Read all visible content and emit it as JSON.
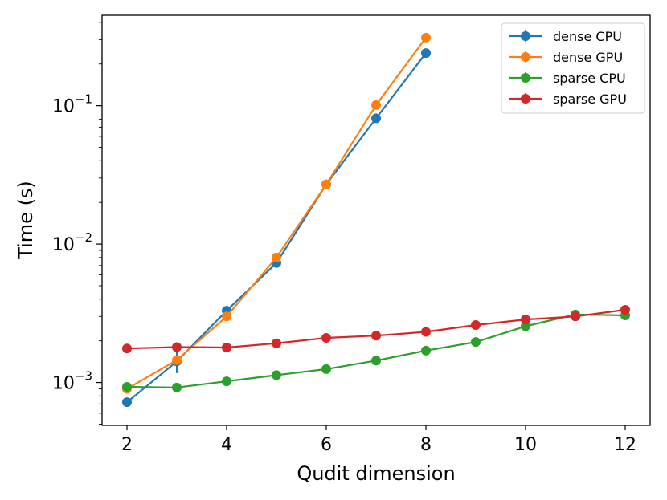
{
  "chart_data": {
    "type": "line",
    "title": "",
    "xlabel": "Qudit dimension",
    "ylabel": "Time (s)",
    "xscale": "linear",
    "yscale": "log",
    "xlim": [
      1.5,
      12.5
    ],
    "ylim": [
      0.00049,
      0.45
    ],
    "xticks": [
      2,
      4,
      6,
      8,
      10,
      12
    ],
    "xtick_labels": [
      "2",
      "4",
      "6",
      "8",
      "10",
      "12"
    ],
    "yticks": [
      0.001,
      0.01,
      0.1
    ],
    "ytick_labels": [
      {
        "base": "10",
        "exp": "−3"
      },
      {
        "base": "10",
        "exp": "−2"
      },
      {
        "base": "10",
        "exp": "−1"
      }
    ],
    "grid": false,
    "legend_position": "top-right",
    "series": [
      {
        "name": "dense CPU",
        "color": "#1f77b4",
        "x": [
          2,
          3,
          4,
          5,
          6,
          7,
          8
        ],
        "y": [
          0.00072,
          0.00142,
          0.0033,
          0.0073,
          0.027,
          0.081,
          0.24
        ],
        "err": [
          0,
          0.00025,
          0,
          0,
          0,
          0,
          0
        ]
      },
      {
        "name": "dense GPU",
        "color": "#ff7f0e",
        "x": [
          2,
          3,
          4,
          5,
          6,
          7,
          8
        ],
        "y": [
          0.0009,
          0.00145,
          0.003,
          0.008,
          0.027,
          0.101,
          0.31
        ],
        "err": [
          0,
          0,
          0,
          0,
          0,
          0,
          0
        ]
      },
      {
        "name": "sparse CPU",
        "color": "#2ca02c",
        "x": [
          2,
          3,
          4,
          5,
          6,
          7,
          8,
          9,
          10,
          11,
          12
        ],
        "y": [
          0.00093,
          0.00092,
          0.00102,
          0.00113,
          0.00125,
          0.00144,
          0.0017,
          0.00196,
          0.00255,
          0.0031,
          0.00305
        ],
        "err": [
          0,
          0,
          0,
          0,
          0,
          0,
          0,
          0,
          0,
          0,
          0
        ]
      },
      {
        "name": "sparse GPU",
        "color": "#d62728",
        "x": [
          2,
          3,
          4,
          5,
          6,
          7,
          8,
          9,
          10,
          11,
          12
        ],
        "y": [
          0.00176,
          0.0018,
          0.00179,
          0.00192,
          0.0021,
          0.00218,
          0.00232,
          0.0026,
          0.00285,
          0.003,
          0.00335
        ],
        "err": [
          0,
          0,
          0,
          0,
          0,
          0,
          0,
          0,
          0,
          0,
          0
        ]
      }
    ]
  }
}
